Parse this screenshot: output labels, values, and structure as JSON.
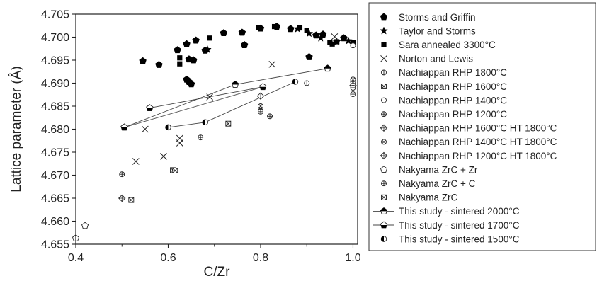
{
  "chart_data": {
    "type": "scatter",
    "xlabel": "C/Zr",
    "ylabel": "Lattice parameter (Å)",
    "xlim": [
      0.4,
      1.01
    ],
    "ylim": [
      4.655,
      4.705
    ],
    "x_ticks": [
      "0.4",
      "0.6",
      "0.8",
      "1.0"
    ],
    "y_ticks": [
      "4.655",
      "4.660",
      "4.665",
      "4.670",
      "4.675",
      "4.680",
      "4.685",
      "4.690",
      "4.695",
      "4.700",
      "4.705"
    ],
    "legend_position": "right, outside plot",
    "series": [
      {
        "name": "Storms and Griffin",
        "marker": "pentagon-filled",
        "points": [
          [
            0.545,
            4.6948
          ],
          [
            0.58,
            4.694
          ],
          [
            0.62,
            4.6972
          ],
          [
            0.64,
            4.6985
          ],
          [
            0.66,
            4.6993
          ],
          [
            0.68,
            4.6971
          ],
          [
            0.72,
            4.7009
          ],
          [
            0.76,
            4.701
          ],
          [
            0.765,
            4.6983
          ],
          [
            0.8,
            4.7019
          ],
          [
            0.835,
            4.7023
          ],
          [
            0.865,
            4.7018
          ],
          [
            0.905,
            4.6957
          ],
          [
            0.92,
            4.7004
          ],
          [
            0.935,
            4.7006
          ],
          [
            0.98,
            4.6998
          ],
          [
            0.64,
            4.6908
          ],
          [
            0.645,
            4.6903
          ],
          [
            0.65,
            4.6898
          ],
          [
            0.645,
            4.6952
          ],
          [
            0.655,
            4.695
          ]
        ]
      },
      {
        "name": "Taylor and Storms",
        "marker": "star-filled",
        "points": [
          [
            0.685,
            4.6973
          ],
          [
            0.88,
            4.7018
          ],
          [
            0.905,
            4.7008
          ],
          [
            0.93,
            4.6998
          ],
          [
            0.965,
            4.699
          ],
          [
            0.99,
            4.6992
          ]
        ]
      },
      {
        "name": "Sara annealed 3300°C",
        "marker": "square-filled",
        "points": [
          [
            0.625,
            4.6955
          ],
          [
            0.625,
            4.6942
          ],
          [
            0.69,
            4.6998
          ],
          [
            0.795,
            4.7021
          ],
          [
            0.83,
            4.7023
          ],
          [
            0.885,
            4.702
          ],
          [
            0.9,
            4.7015
          ],
          [
            0.95,
            4.6989
          ],
          [
            0.955,
            4.6985
          ],
          [
            0.965,
            4.699
          ],
          [
            1.0,
            4.6988
          ]
        ]
      },
      {
        "name": "Norton and Lewis",
        "marker": "x",
        "points": [
          [
            0.53,
            4.673
          ],
          [
            0.55,
            4.68
          ],
          [
            0.59,
            4.6741
          ],
          [
            0.625,
            4.677
          ],
          [
            0.625,
            4.678
          ],
          [
            0.69,
            4.687
          ],
          [
            0.825,
            4.6941
          ],
          [
            0.96,
            4.7001
          ]
        ]
      },
      {
        "name": "Nachiappan RHP 1800°C",
        "marker": "circle-vbar",
        "points": [
          [
            0.9,
            4.69
          ],
          [
            1.0,
            4.6982
          ]
        ]
      },
      {
        "name": "Nachiappan RHP 1600°C",
        "marker": "square-x",
        "points": [
          [
            0.61,
            4.6711
          ],
          [
            0.73,
            4.6812
          ]
        ]
      },
      {
        "name": "Nachiappan RHP 1400°C",
        "marker": "circle",
        "points": [
          [
            1.0,
            4.6903
          ]
        ]
      },
      {
        "name": "Nachiappan RHP 1200°C",
        "marker": "circle-plus",
        "points": [
          [
            0.5,
            4.6702
          ],
          [
            0.67,
            4.6782
          ],
          [
            0.8,
            4.684
          ],
          [
            0.82,
            4.6828
          ],
          [
            1.0,
            4.6876
          ]
        ]
      },
      {
        "name": "Nachiappan  RHP 1600°C HT 1800°C",
        "marker": "diamond-plus",
        "points": [
          [
            0.5,
            4.665
          ],
          [
            0.8,
            4.6872
          ]
        ]
      },
      {
        "name": "Nachiappan  RHP 1400°C HT 1800°C",
        "marker": "circle-x",
        "points": [
          [
            0.8,
            4.685
          ],
          [
            1.0,
            4.6908
          ]
        ]
      },
      {
        "name": "Nachiappan  RHP 1200°C HT 1800°C",
        "marker": "diamond-plus",
        "points": [
          [
            1.0,
            4.6895
          ]
        ]
      },
      {
        "name": "Nakyama ZrC + Zr",
        "marker": "pentagon",
        "points": [
          [
            0.4,
            4.6563
          ],
          [
            0.42,
            4.659
          ]
        ]
      },
      {
        "name": "Nakyama ZrC + C",
        "marker": "circle-plus",
        "points": [
          [
            0.8,
            4.6838
          ],
          [
            1.0,
            4.689
          ]
        ]
      },
      {
        "name": "Nakyama ZrC",
        "marker": "square-x",
        "points": [
          [
            0.52,
            4.6646
          ],
          [
            0.615,
            4.671
          ]
        ]
      },
      {
        "name": "This study - sintered 2000°C",
        "marker": "pentagon-top-half",
        "line": true,
        "points": [
          [
            0.505,
            4.6804
          ],
          [
            0.745,
            4.6897
          ],
          [
            0.945,
            4.6932
          ]
        ]
      },
      {
        "name": "This study - sintered 1700°C",
        "marker": "pentagon-bottom-half",
        "line": true,
        "points": [
          [
            0.56,
            4.6846
          ],
          [
            0.805,
            4.6892
          ],
          [
            0.505,
            4.6804
          ]
        ]
      },
      {
        "name": "This study - sintered 1500°C",
        "marker": "circle-left-half",
        "line": true,
        "points": [
          [
            0.6,
            4.6804
          ],
          [
            0.68,
            4.6815
          ],
          [
            0.875,
            4.6903
          ]
        ]
      }
    ]
  }
}
